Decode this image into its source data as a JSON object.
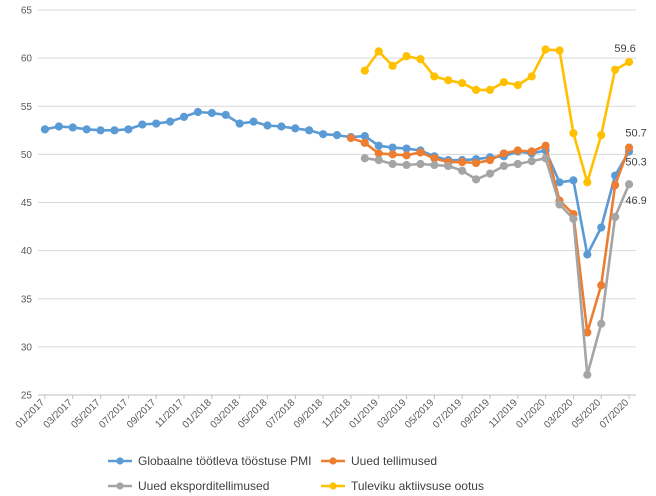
{
  "chart_data": {
    "type": "line",
    "title": "",
    "xlabel": "",
    "ylabel": "",
    "ylim": [
      25,
      65
    ],
    "yticks": [
      25,
      30,
      35,
      40,
      45,
      50,
      55,
      60,
      65
    ],
    "grid": "horizontal",
    "legend_position": "bottom",
    "x": [
      "01/2017",
      "02/2017",
      "03/2017",
      "04/2017",
      "05/2017",
      "06/2017",
      "07/2017",
      "08/2017",
      "09/2017",
      "10/2017",
      "11/2017",
      "12/2017",
      "01/2018",
      "02/2018",
      "03/2018",
      "04/2018",
      "05/2018",
      "06/2018",
      "07/2018",
      "08/2018",
      "09/2018",
      "10/2018",
      "11/2018",
      "12/2018",
      "01/2019",
      "02/2019",
      "03/2019",
      "04/2019",
      "05/2019",
      "06/2019",
      "07/2019",
      "08/2019",
      "09/2019",
      "10/2019",
      "11/2019",
      "12/2019",
      "01/2020",
      "02/2020",
      "03/2020",
      "04/2020",
      "05/2020",
      "06/2020",
      "07/2020"
    ],
    "xtick_labels": [
      "01/2017",
      "03/2017",
      "05/2017",
      "07/2017",
      "09/2017",
      "11/2017",
      "01/2018",
      "03/2018",
      "05/2018",
      "07/2018",
      "09/2018",
      "11/2018",
      "01/2019",
      "03/2019",
      "05/2019",
      "07/2019",
      "09/2019",
      "11/2019",
      "01/2020",
      "03/2020",
      "05/2020",
      "07/2020"
    ],
    "series": [
      {
        "name": "Globaalne töötleva tööstuse PMI",
        "color": "#5B9BD5",
        "values": [
          52.6,
          52.9,
          52.8,
          52.6,
          52.5,
          52.5,
          52.6,
          53.1,
          53.2,
          53.4,
          53.9,
          54.4,
          54.3,
          54.1,
          53.2,
          53.4,
          53.0,
          52.9,
          52.7,
          52.5,
          52.1,
          52.0,
          51.8,
          51.9,
          50.9,
          50.7,
          50.6,
          50.4,
          49.8,
          49.4,
          49.4,
          49.5,
          49.7,
          49.8,
          50.3,
          50.1,
          50.4,
          47.1,
          47.3,
          39.6,
          42.4,
          47.8,
          50.3
        ]
      },
      {
        "name": "Uued tellimused",
        "color": "#ED7D31",
        "values": [
          null,
          null,
          null,
          null,
          null,
          null,
          null,
          null,
          null,
          null,
          null,
          null,
          null,
          null,
          null,
          null,
          null,
          null,
          null,
          null,
          null,
          null,
          51.7,
          51.2,
          50.1,
          50.0,
          49.9,
          50.2,
          49.6,
          49.2,
          49.2,
          49.1,
          49.4,
          50.1,
          50.4,
          50.3,
          50.9,
          45.2,
          43.8,
          31.5,
          36.4,
          46.8,
          50.7
        ]
      },
      {
        "name": "Uued eksporditellimused",
        "color": "#A5A5A5",
        "values": [
          null,
          null,
          null,
          null,
          null,
          null,
          null,
          null,
          null,
          null,
          null,
          null,
          null,
          null,
          null,
          null,
          null,
          null,
          null,
          null,
          null,
          null,
          null,
          49.6,
          49.4,
          49.0,
          48.9,
          49.0,
          48.9,
          48.8,
          48.3,
          47.4,
          48.0,
          48.8,
          49.0,
          49.3,
          49.6,
          44.8,
          43.3,
          27.1,
          32.4,
          43.5,
          46.9
        ]
      },
      {
        "name": "Tuleviku aktiivsuse ootus",
        "color": "#FFC000",
        "values": [
          null,
          null,
          null,
          null,
          null,
          null,
          null,
          null,
          null,
          null,
          null,
          null,
          null,
          null,
          null,
          null,
          null,
          null,
          null,
          null,
          null,
          null,
          null,
          58.7,
          60.7,
          59.2,
          60.2,
          59.9,
          58.1,
          57.7,
          57.4,
          56.7,
          56.7,
          57.5,
          57.2,
          58.1,
          60.9,
          60.8,
          52.2,
          47.1,
          52.0,
          58.8,
          59.6
        ]
      }
    ],
    "annotations": [
      {
        "series": 3,
        "index": 42,
        "text": "59.6",
        "placement": "above"
      },
      {
        "series": 1,
        "index": 42,
        "text": "50.7",
        "placement": "above-right"
      },
      {
        "series": 0,
        "index": 42,
        "text": "50.3",
        "placement": "right"
      },
      {
        "series": 2,
        "index": 42,
        "text": "46.9",
        "placement": "below-right"
      }
    ]
  }
}
